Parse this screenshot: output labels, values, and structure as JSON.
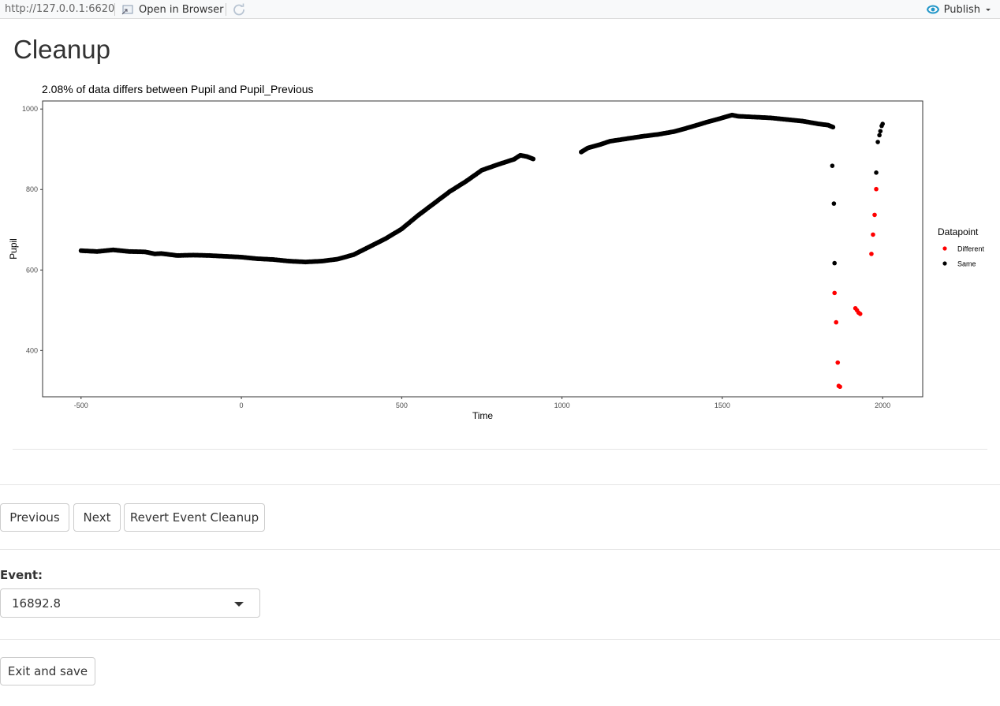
{
  "toolbar": {
    "url": "http://127.0.0.1:6620",
    "open_in_browser": "Open in Browser",
    "publish": "Publish"
  },
  "page": {
    "title": "Cleanup"
  },
  "buttons": {
    "previous": "Previous",
    "next": "Next",
    "revert": "Revert Event Cleanup",
    "exit": "Exit and save"
  },
  "event": {
    "label": "Event:",
    "value": "16892.8"
  },
  "colors": {
    "different": "#ff0000",
    "same": "#000000",
    "publish_icon": "#2196c8"
  },
  "chart_data": {
    "type": "scatter",
    "title": "2.08% of data differs between Pupil and Pupil_Previous",
    "xlabel": "Time",
    "ylabel": "Pupil",
    "xlim": [
      -620,
      2125
    ],
    "ylim": [
      285,
      1020
    ],
    "xticks": [
      -500,
      0,
      500,
      1000,
      1500,
      2000
    ],
    "yticks": [
      400,
      600,
      800,
      1000
    ],
    "grid": false,
    "legend": {
      "title": "Datapoint",
      "position": "right",
      "entries": [
        "Different",
        "Same"
      ]
    },
    "series": [
      {
        "name": "Same",
        "segments": [
          [
            [
              -500,
              648
            ],
            [
              -450,
              646
            ],
            [
              -400,
              650
            ],
            [
              -350,
              646
            ],
            [
              -300,
              645
            ],
            [
              -270,
              640
            ],
            [
              -250,
              641
            ],
            [
              -230,
              639
            ],
            [
              -200,
              636
            ],
            [
              -150,
              637
            ],
            [
              -100,
              636
            ],
            [
              -50,
              634
            ],
            [
              0,
              632
            ],
            [
              50,
              628
            ],
            [
              100,
              626
            ],
            [
              150,
              622
            ],
            [
              200,
              620
            ],
            [
              250,
              622
            ],
            [
              300,
              627
            ],
            [
              350,
              638
            ],
            [
              400,
              658
            ],
            [
              450,
              678
            ],
            [
              500,
              702
            ],
            [
              550,
              735
            ],
            [
              600,
              765
            ],
            [
              650,
              795
            ],
            [
              700,
              820
            ],
            [
              750,
              848
            ],
            [
              800,
              862
            ],
            [
              850,
              875
            ],
            [
              870,
              885
            ],
            [
              890,
              882
            ],
            [
              910,
              876
            ]
          ],
          [
            [
              1060,
              893
            ],
            [
              1080,
              903
            ],
            [
              1120,
              912
            ],
            [
              1150,
              920
            ],
            [
              1200,
              926
            ],
            [
              1250,
              932
            ],
            [
              1300,
              937
            ],
            [
              1350,
              944
            ],
            [
              1400,
              955
            ],
            [
              1450,
              967
            ],
            [
              1500,
              978
            ],
            [
              1530,
              985
            ],
            [
              1550,
              982
            ],
            [
              1600,
              980
            ],
            [
              1650,
              978
            ],
            [
              1700,
              974
            ],
            [
              1750,
              970
            ],
            [
              1800,
              963
            ],
            [
              1830,
              960
            ],
            [
              1845,
              955
            ]
          ]
        ],
        "points": [
          [
            1843,
            859
          ],
          [
            1848,
            765
          ],
          [
            1850,
            617
          ],
          [
            1980,
            842
          ],
          [
            1985,
            918
          ],
          [
            1990,
            935
          ],
          [
            1993,
            945
          ],
          [
            1997,
            958
          ],
          [
            2000,
            963
          ]
        ]
      },
      {
        "name": "Different",
        "points": [
          [
            1850,
            543
          ],
          [
            1855,
            470
          ],
          [
            1860,
            370
          ],
          [
            1863,
            312
          ],
          [
            1867,
            310
          ],
          [
            1915,
            505
          ],
          [
            1920,
            500
          ],
          [
            1925,
            494
          ],
          [
            1930,
            491
          ],
          [
            1965,
            640
          ],
          [
            1970,
            688
          ],
          [
            1975,
            737
          ],
          [
            1980,
            801
          ]
        ]
      }
    ]
  }
}
